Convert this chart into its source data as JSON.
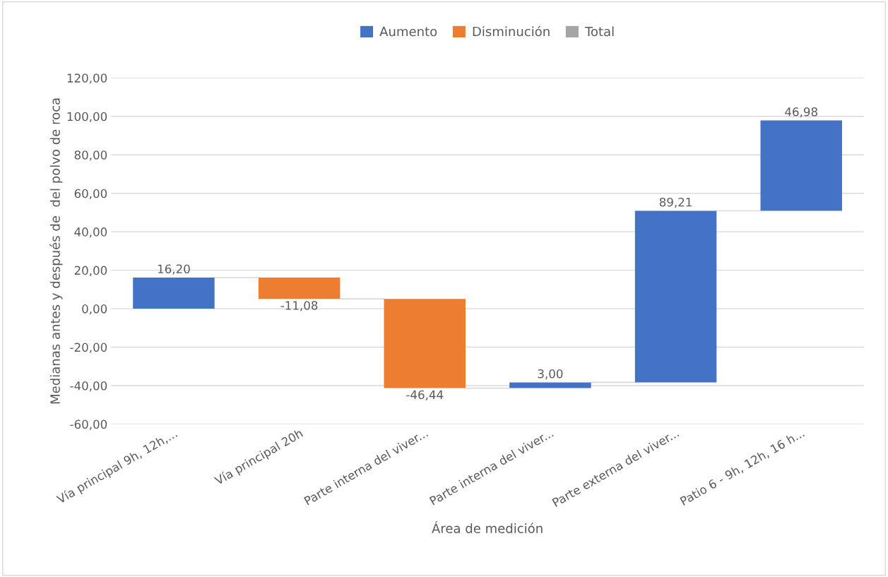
{
  "chart_data": {
    "type": "bar",
    "xlabel": "Área de medición",
    "ylabel": "Medianas antes y después de  del polvo de roca",
    "categories": [
      "Vía principal 9h, 12h,...",
      "Vía principal 20h",
      "Parte interna del viver...",
      "Parte interna del viver...",
      "Parte externa del viver...",
      "Patio 6 - 9h, 12h, 16 h..."
    ],
    "series": [
      {
        "name": "Aumento",
        "color": "#4472c4",
        "base": [
          0,
          null,
          null,
          -41.32,
          -38.32,
          50.89
        ],
        "values": [
          16.2,
          null,
          null,
          3.0,
          89.21,
          46.98
        ],
        "value_labels": [
          "16,20",
          null,
          null,
          "3,00",
          "89,21",
          "46,98"
        ]
      },
      {
        "name": "Disminución",
        "color": "#ed7d31",
        "base": [
          null,
          16.2,
          5.12,
          null,
          null,
          null
        ],
        "values": [
          null,
          -11.08,
          -46.44,
          null,
          null,
          null
        ],
        "value_labels": [
          null,
          "-11,08",
          "-46,44",
          null,
          null,
          null
        ]
      },
      {
        "name": "Total",
        "color": "#a5a5a5",
        "values": [
          null,
          null,
          null,
          null,
          null,
          null
        ]
      }
    ],
    "ylim": [
      -60,
      120
    ],
    "yticks": [
      {
        "value": -60,
        "label": "-60,00"
      },
      {
        "value": -40,
        "label": "-40,00"
      },
      {
        "value": -20,
        "label": "-20,00"
      },
      {
        "value": 0,
        "label": "0,00"
      },
      {
        "value": 20,
        "label": "20,00"
      },
      {
        "value": 40,
        "label": "40,00"
      },
      {
        "value": 60,
        "label": "60,00"
      },
      {
        "value": 80,
        "label": "80,00"
      },
      {
        "value": 100,
        "label": "100,00"
      },
      {
        "value": 120,
        "label": "120,00"
      }
    ],
    "grid": "y",
    "legend": "top"
  }
}
